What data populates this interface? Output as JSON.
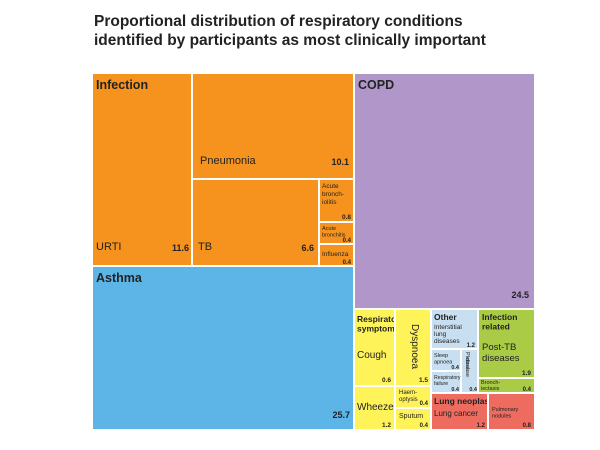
{
  "chart_data": {
    "type": "treemap",
    "title_lines": [
      "Proportional distribution of respiratory conditions",
      "identified by participants as most clinically important"
    ],
    "colors": {
      "infection": "#f6931e",
      "copd": "#b197c9",
      "asthma": "#5cb5e6",
      "resp_symptoms": "#fff35a",
      "other": "#c7dff0",
      "infection_related": "#aacb45",
      "lung_neoplasm": "#ee6b5f",
      "border": "#ffffff"
    },
    "groups": {
      "infection": {
        "label": "Infection"
      },
      "copd": {
        "label": "COPD",
        "value": "24.5"
      },
      "asthma": {
        "label": "Asthma",
        "value": "25.7"
      },
      "resp_symptoms": {
        "label_lines": [
          "Respiratory",
          "symptoms"
        ]
      },
      "other": {
        "label": "Other"
      },
      "infection_related": {
        "label_lines": [
          "Infection",
          "related"
        ]
      },
      "lung_neoplasm": {
        "label": "Lung neoplasm"
      }
    },
    "items": {
      "urti": {
        "label": "URTI",
        "value": "11.6"
      },
      "pneumonia": {
        "label": "Pneumonia",
        "value": "10.1"
      },
      "tb": {
        "label": "TB",
        "value": "6.6"
      },
      "acute_bronchiolitis": {
        "label_lines": [
          "Acute",
          "bronch-",
          "iolitis"
        ],
        "value": "0.8"
      },
      "acute_bronchitis": {
        "label_lines": [
          "Acute",
          "bronchitis"
        ],
        "value": "0.4"
      },
      "influenza": {
        "label": "Influenza",
        "value": "0.4"
      },
      "cough": {
        "label": "Cough",
        "value": "0.6"
      },
      "dyspnoea": {
        "label": "Dyspnoea",
        "value": "1.5"
      },
      "wheeze": {
        "label": "Wheeze",
        "value": "1.2"
      },
      "haemoptysis": {
        "label_lines": [
          "Haem-",
          "optysis"
        ],
        "value": "0.4"
      },
      "sputum": {
        "label": "Sputum",
        "value": "0.4"
      },
      "interstitial_lung": {
        "label_lines": [
          "Interstitial",
          "lung",
          "diseases"
        ],
        "value": "1.2"
      },
      "sleep_apnea": {
        "label_lines": [
          "Sleep",
          "apnoea"
        ],
        "value": "0.4"
      },
      "pleural_disease": {
        "label_lines": [
          "Pleural",
          "disease"
        ],
        "value": "0.4"
      },
      "respiratory_failure": {
        "label_lines": [
          "Respiratory",
          "failure"
        ],
        "value": "0.4"
      },
      "post_tb": {
        "label_lines": [
          "Post-TB",
          "diseases"
        ],
        "value": "1.9"
      },
      "bronchiectasis": {
        "label_lines": [
          "Bronch-",
          "iectasis"
        ],
        "value": "0.4"
      },
      "lung_cancer": {
        "label": "Lung cancer",
        "value": "1.2"
      },
      "pulmonary_nodules": {
        "label_lines": [
          "Pulmonary",
          "nodules"
        ],
        "value": "0.8"
      }
    }
  }
}
